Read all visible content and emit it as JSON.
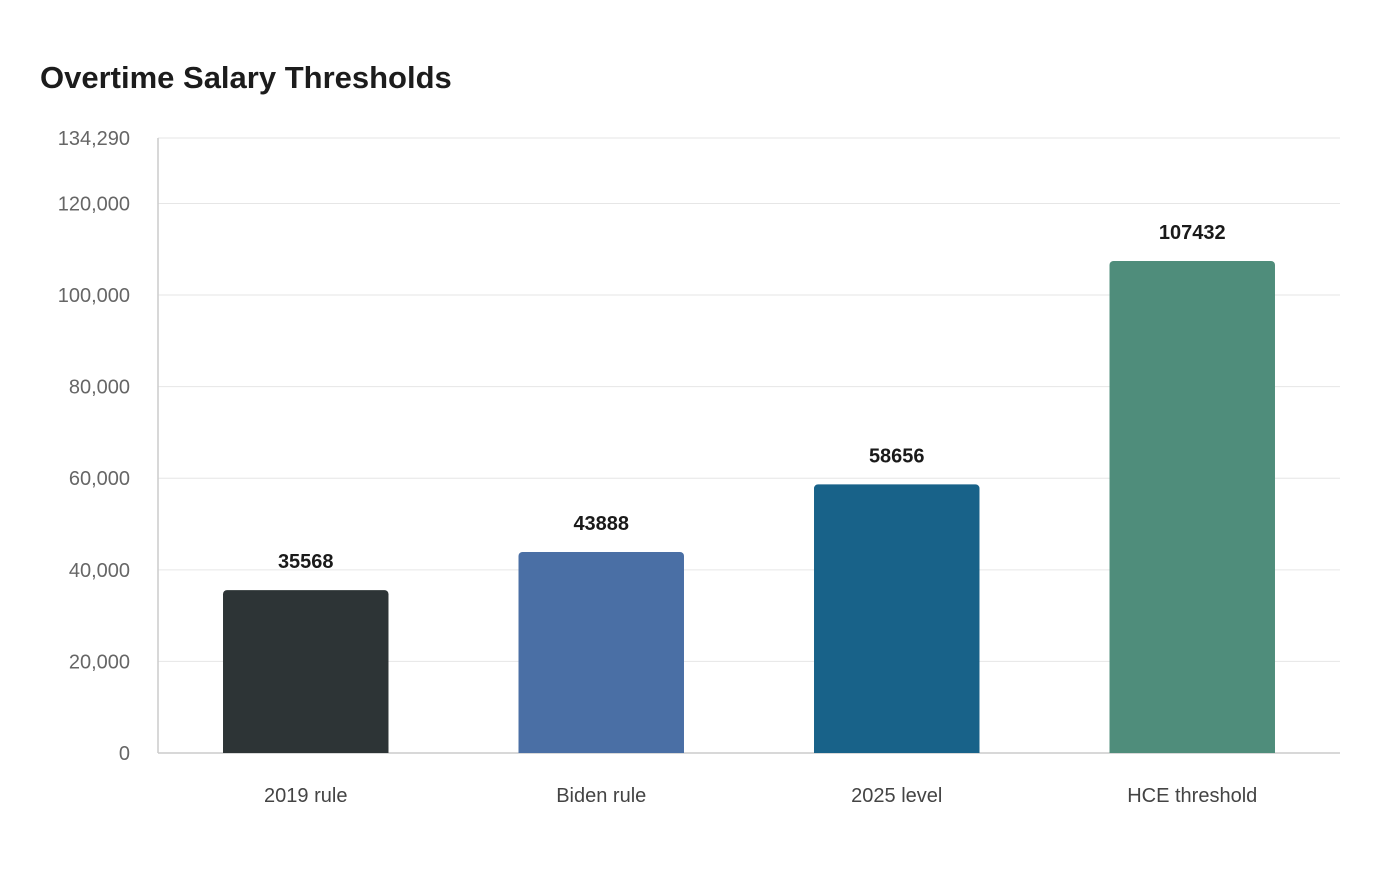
{
  "chart_data": {
    "type": "bar",
    "title": "Overtime Salary Thresholds",
    "categories": [
      "2019 rule",
      "Biden rule",
      "2025 level",
      "HCE threshold"
    ],
    "values": [
      35568,
      43888,
      58656,
      107432
    ],
    "data_labels": [
      "35568",
      "43888",
      "58656",
      "107432"
    ],
    "bar_colors": [
      "#2d3436",
      "#4a6fa5",
      "#186289",
      "#4f8d7b"
    ],
    "ylim": [
      0,
      134290
    ],
    "yticks": [
      0,
      20000,
      40000,
      60000,
      80000,
      100000,
      120000,
      134290
    ],
    "ytick_labels": [
      "0",
      "20,000",
      "40,000",
      "60,000",
      "80,000",
      "100,000",
      "120,000",
      "134,290"
    ],
    "xlabel": "",
    "ylabel": "",
    "grid": true,
    "legend": false
  }
}
